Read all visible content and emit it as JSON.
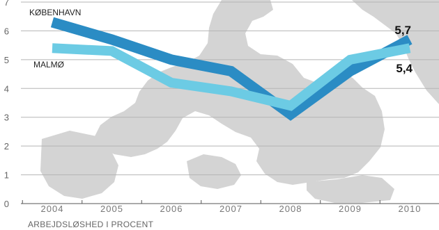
{
  "chart_data": {
    "type": "line",
    "title": "",
    "xlabel": "ARBEJDSLØSHED I PROCENT",
    "ylabel": "",
    "categories": [
      "2004",
      "2005",
      "2006",
      "2007",
      "2008",
      "2009",
      "2010"
    ],
    "ylim": [
      0,
      7
    ],
    "yticks": [
      "0",
      "1",
      "2",
      "3",
      "4",
      "5",
      "6",
      "7"
    ],
    "grid": true,
    "legend": "inline labels",
    "series": [
      {
        "name": "KØBENHAVN",
        "values": [
          6.3,
          5.7,
          5.0,
          4.6,
          3.1,
          4.6,
          5.7
        ],
        "color": "#2b8cc4",
        "end_label": "5,7"
      },
      {
        "name": "MALMØ",
        "values": [
          5.4,
          5.3,
          4.2,
          3.9,
          3.4,
          5.0,
          5.4
        ],
        "color": "#6ccbe4",
        "end_label": "5,4"
      }
    ],
    "background": "map-silhouette",
    "map_color": "#d4d4d4"
  }
}
